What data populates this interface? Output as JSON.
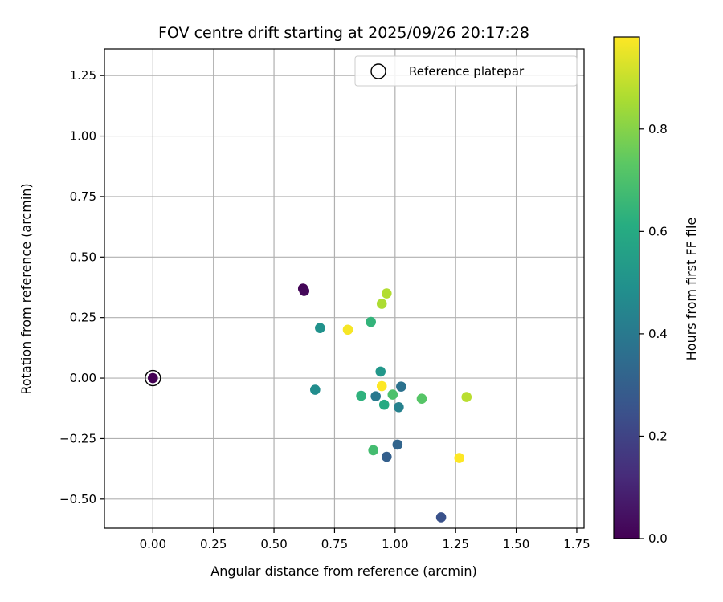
{
  "chart_data": {
    "type": "scatter",
    "title": "FOV centre drift starting at 2025/09/26 20:17:28",
    "xlabel": "Angular distance from reference (arcmin)",
    "ylabel": "Rotation from reference (arcmin)",
    "xlim": [
      -0.2,
      1.78
    ],
    "ylim": [
      -0.62,
      1.36
    ],
    "xticks": [
      0.0,
      0.25,
      0.5,
      0.75,
      1.0,
      1.25,
      1.5,
      1.75
    ],
    "xtick_labels": [
      "0.00",
      "0.25",
      "0.50",
      "0.75",
      "1.00",
      "1.25",
      "1.50",
      "1.75"
    ],
    "yticks": [
      -0.5,
      -0.25,
      0.0,
      0.25,
      0.5,
      0.75,
      1.0,
      1.25
    ],
    "ytick_labels": [
      "−0.50",
      "−0.25",
      "0.00",
      "0.25",
      "0.50",
      "0.75",
      "1.00",
      "1.25"
    ],
    "grid": true,
    "legend": {
      "location": "upper right",
      "entries": [
        "Reference platepar"
      ]
    },
    "reference_point": {
      "x": 0.0,
      "y": 0.0,
      "c": 0.0
    },
    "colorbar": {
      "label": "Hours from first FF file",
      "colormap": "viridis",
      "range": [
        0.0,
        0.98
      ],
      "ticks": [
        0.0,
        0.2,
        0.4,
        0.6,
        0.8
      ],
      "tick_labels": [
        "0.0",
        "0.2",
        "0.4",
        "0.6",
        "0.8"
      ]
    },
    "points": [
      {
        "x": 0.62,
        "y": 0.37,
        "c": 0.01
      },
      {
        "x": 0.625,
        "y": 0.36,
        "c": 0.02
      },
      {
        "x": 1.19,
        "y": -0.575,
        "c": 0.25
      },
      {
        "x": 0.965,
        "y": -0.325,
        "c": 0.3
      },
      {
        "x": 1.01,
        "y": -0.275,
        "c": 0.32
      },
      {
        "x": 1.025,
        "y": -0.035,
        "c": 0.37
      },
      {
        "x": 0.92,
        "y": -0.075,
        "c": 0.4
      },
      {
        "x": 1.015,
        "y": -0.12,
        "c": 0.43
      },
      {
        "x": 0.67,
        "y": -0.048,
        "c": 0.48
      },
      {
        "x": 0.69,
        "y": 0.207,
        "c": 0.5
      },
      {
        "x": 0.94,
        "y": 0.027,
        "c": 0.52
      },
      {
        "x": 0.955,
        "y": -0.11,
        "c": 0.6
      },
      {
        "x": 0.86,
        "y": -0.073,
        "c": 0.63
      },
      {
        "x": 0.9,
        "y": 0.232,
        "c": 0.64
      },
      {
        "x": 0.91,
        "y": -0.298,
        "c": 0.68
      },
      {
        "x": 0.99,
        "y": -0.068,
        "c": 0.7
      },
      {
        "x": 1.11,
        "y": -0.085,
        "c": 0.72
      },
      {
        "x": 0.945,
        "y": 0.307,
        "c": 0.86
      },
      {
        "x": 0.965,
        "y": 0.35,
        "c": 0.87
      },
      {
        "x": 1.295,
        "y": -0.078,
        "c": 0.88
      },
      {
        "x": 0.805,
        "y": 0.2,
        "c": 0.97
      },
      {
        "x": 0.945,
        "y": -0.033,
        "c": 0.98
      },
      {
        "x": 1.265,
        "y": -0.33,
        "c": 0.98
      }
    ]
  }
}
